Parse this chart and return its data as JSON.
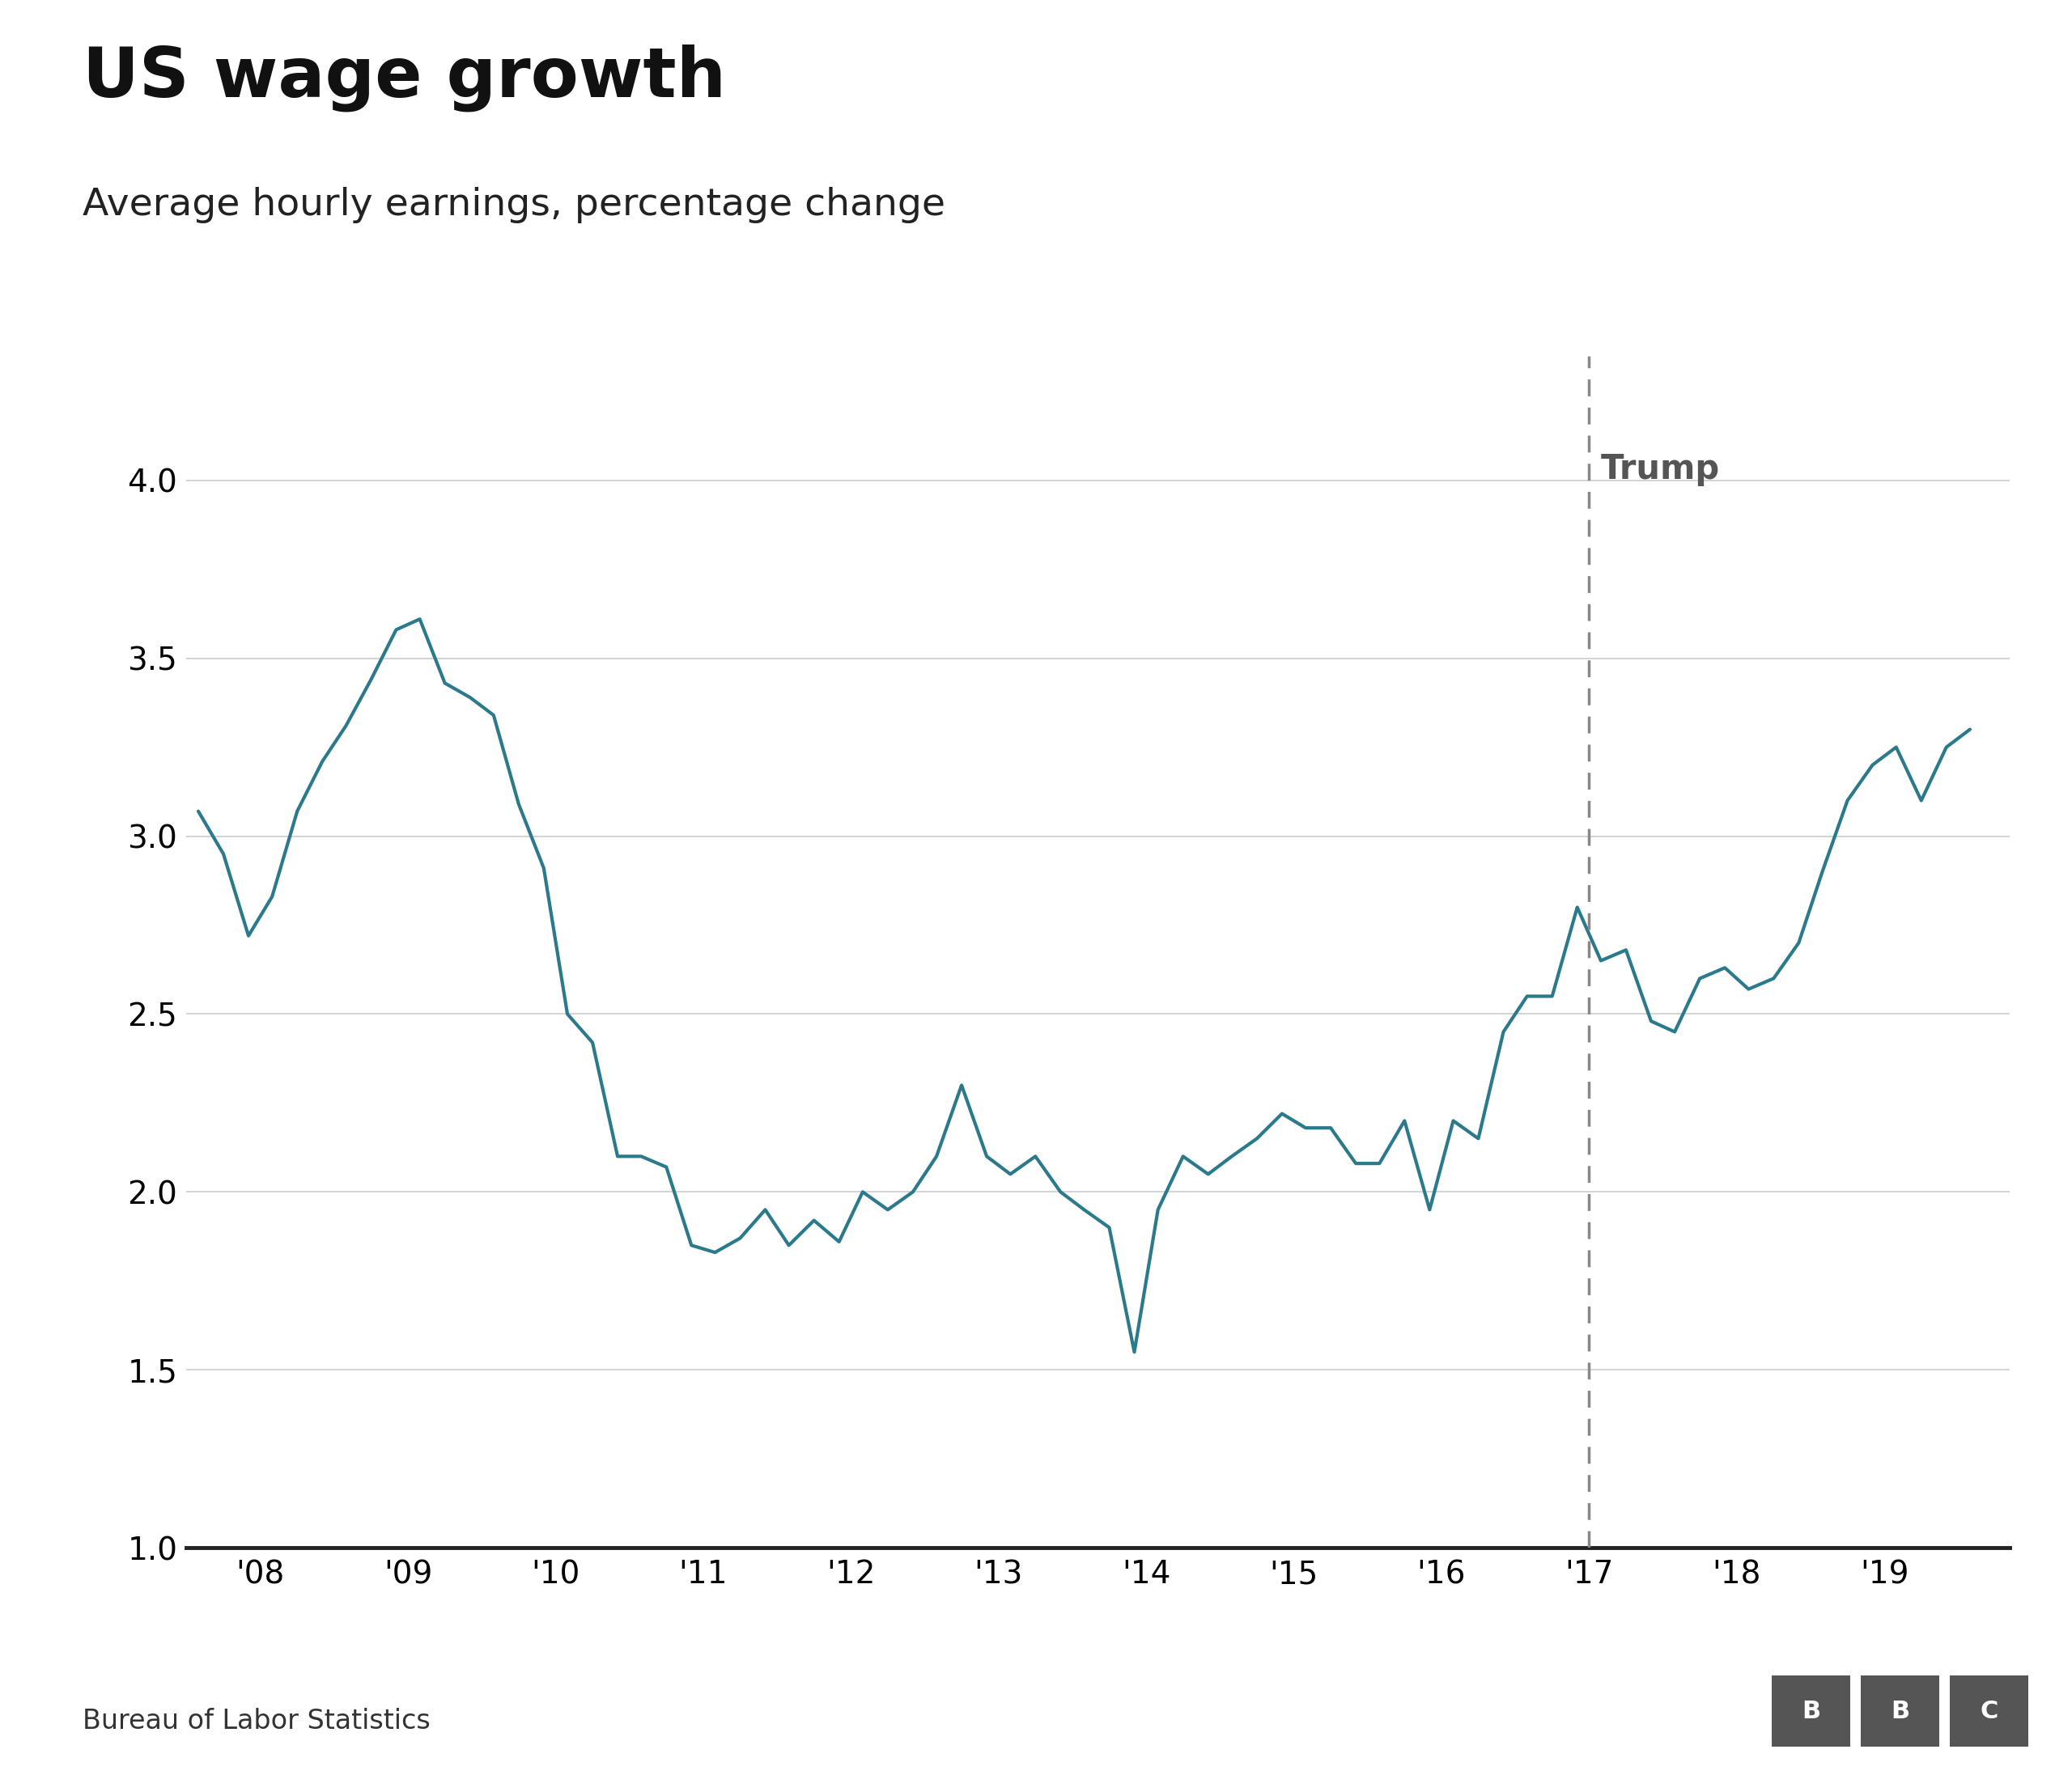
{
  "title": "US wage growth",
  "subtitle": "Average hourly earnings, percentage change",
  "source": "Bureau of Labor Statistics",
  "line_color": "#2b7a8c",
  "line_width": 3.0,
  "background_color": "#ffffff",
  "trump_line_x": 2017.0,
  "trump_label": "Trump",
  "trump_label_color": "#555555",
  "ylim": [
    1.0,
    4.35
  ],
  "yticks": [
    1.0,
    1.5,
    2.0,
    2.5,
    3.0,
    3.5,
    4.0
  ],
  "xtick_positions": [
    2008,
    2009,
    2010,
    2011,
    2012,
    2013,
    2014,
    2015,
    2016,
    2017,
    2018,
    2019
  ],
  "xtick_labels": [
    "'08",
    "'09",
    "'10",
    "'11",
    "'12",
    "'13",
    "'14",
    "'15",
    "'16",
    "'17",
    "'18",
    "'19"
  ],
  "xlim": [
    2007.5,
    2019.85
  ],
  "data_x": [
    2007.58,
    2007.75,
    2007.92,
    2008.08,
    2008.25,
    2008.42,
    2008.58,
    2008.75,
    2008.92,
    2009.08,
    2009.25,
    2009.42,
    2009.58,
    2009.75,
    2009.92,
    2010.08,
    2010.25,
    2010.42,
    2010.58,
    2010.75,
    2010.92,
    2011.08,
    2011.25,
    2011.42,
    2011.58,
    2011.75,
    2011.92,
    2012.08,
    2012.25,
    2012.42,
    2012.58,
    2012.75,
    2012.92,
    2013.08,
    2013.25,
    2013.42,
    2013.58,
    2013.75,
    2013.92,
    2014.08,
    2014.25,
    2014.42,
    2014.58,
    2014.75,
    2014.92,
    2015.08,
    2015.25,
    2015.42,
    2015.58,
    2015.75,
    2015.92,
    2016.08,
    2016.25,
    2016.42,
    2016.58,
    2016.75,
    2016.92,
    2017.08,
    2017.25,
    2017.42,
    2017.58,
    2017.75,
    2017.92,
    2018.08,
    2018.25,
    2018.42,
    2018.58,
    2018.75,
    2018.92,
    2019.08,
    2019.25,
    2019.42,
    2019.58
  ],
  "data_y": [
    3.07,
    2.95,
    2.72,
    2.83,
    3.07,
    3.21,
    3.31,
    3.44,
    3.58,
    3.61,
    3.43,
    3.39,
    3.34,
    3.09,
    2.91,
    2.5,
    2.42,
    2.1,
    2.1,
    2.07,
    1.85,
    1.83,
    1.87,
    1.95,
    1.85,
    1.92,
    1.86,
    2.0,
    1.95,
    2.0,
    2.1,
    2.3,
    2.1,
    2.05,
    2.1,
    2.0,
    1.95,
    1.9,
    1.55,
    1.95,
    2.1,
    2.05,
    2.1,
    2.15,
    2.22,
    2.18,
    2.18,
    2.08,
    2.08,
    2.2,
    1.95,
    2.2,
    2.15,
    2.45,
    2.55,
    2.55,
    2.8,
    2.65,
    2.68,
    2.48,
    2.45,
    2.6,
    2.63,
    2.57,
    2.6,
    2.7,
    2.9,
    3.1,
    3.2,
    3.25,
    3.1,
    3.25,
    3.3
  ],
  "title_fontsize": 62,
  "subtitle_fontsize": 34,
  "tick_fontsize": 28,
  "source_fontsize": 24,
  "trump_fontsize": 30,
  "grid_color": "#cccccc",
  "spine_color": "#222222",
  "dashed_line_color": "#888888"
}
